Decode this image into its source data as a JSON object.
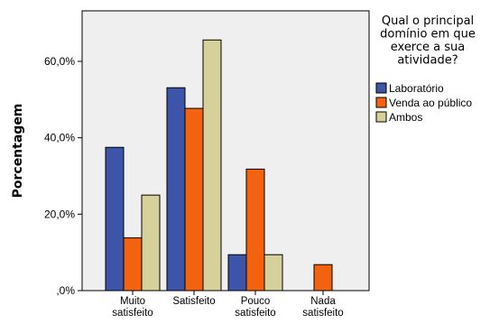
{
  "chart_data": {
    "type": "bar",
    "ylabel": "Porcentagem",
    "xlabel": "",
    "ylim": [
      0,
      70
    ],
    "yticks": [
      {
        "value": 0,
        "label": ",0%"
      },
      {
        "value": 20,
        "label": "20,0%"
      },
      {
        "value": 40,
        "label": "40,0%"
      },
      {
        "value": 60,
        "label": "60,0%"
      }
    ],
    "categories": [
      [
        "Muito",
        "satisfeito"
      ],
      [
        "Satisfeito"
      ],
      [
        "Pouco",
        "satisfeito"
      ],
      [
        "Nada",
        "satisfeito"
      ]
    ],
    "legend_title": [
      "Qual o principal",
      "domínio em que",
      "exerce a sua",
      "atividade?"
    ],
    "legend_position": "right",
    "plot_background": "#efefef",
    "series": [
      {
        "name": "Laboratório",
        "color": "#3d55a8",
        "values": [
          37.5,
          53.1,
          9.4,
          0
        ]
      },
      {
        "name": "Venda ao público",
        "color": "#f2620f",
        "values": [
          13.8,
          47.7,
          31.8,
          6.8
        ]
      },
      {
        "name": "Ambos",
        "color": "#d6d09a",
        "values": [
          25.0,
          65.6,
          9.4,
          0
        ]
      }
    ]
  }
}
